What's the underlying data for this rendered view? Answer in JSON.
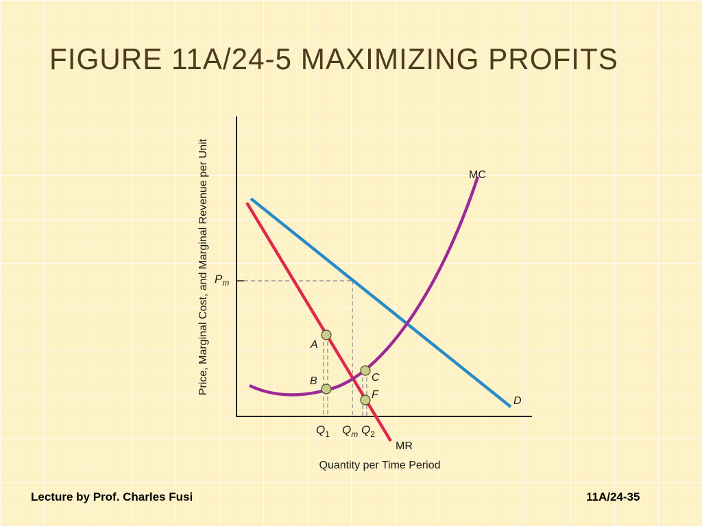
{
  "slide": {
    "title": "FIGURE 11A/24-5  MAXIMIZING PROFITS",
    "footer_left": "Lecture by Prof. Charles Fusi",
    "footer_right": "11A/24-35"
  },
  "diagram": {
    "y_axis_label": "Price, Marginal Cost, and Marginal Revenue per Unit",
    "x_axis_label": "Quantity per Time Period",
    "price_label": {
      "main": "P",
      "sub": "m"
    },
    "curve_labels": {
      "mc": "MC",
      "mr": "MR",
      "demand": "D"
    },
    "quantity_labels": {
      "q1": {
        "main": "Q",
        "sub": "1"
      },
      "qm": {
        "main": "Q",
        "sub": "m"
      },
      "q2": {
        "main": "Q",
        "sub": "2"
      }
    },
    "point_labels": {
      "a": "A",
      "b": "B",
      "c": "C",
      "f": "F"
    },
    "colors": {
      "demand": "#2a8ac8",
      "marginal_revenue": "#e0284a",
      "marginal_cost": "#9b2b96",
      "points": "#c9cc8a",
      "guides": "#999999"
    }
  }
}
